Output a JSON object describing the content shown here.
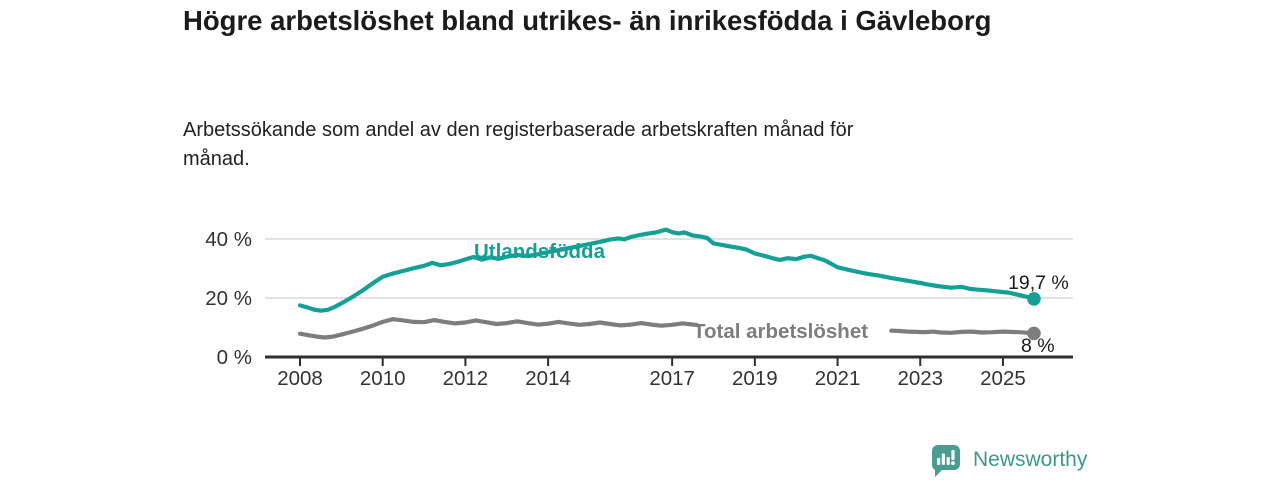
{
  "header": {
    "title": "Högre arbetslöshet bland utrikes- än inrikesfödda i Gävleborg",
    "subtitle": "Arbetssökande som andel av den registerbaserade arbetskraften månad för månad."
  },
  "footer": {
    "brand": "Newsworthy",
    "logo_icon": "bar-chart-speech-bubble-icon"
  },
  "colors": {
    "foreign_series": "#14a096",
    "total_series": "#7d7d7d",
    "axis": "#2e2e2e",
    "tick_text": "#333333",
    "grid": "#d8d8d8",
    "value_text": "#1c1c1c",
    "brand": "#3e978c",
    "logo_bubble": "#4a9b91"
  },
  "chart_data": {
    "type": "line",
    "title": "Högre arbetslöshet bland utrikes- än inrikesfödda i Gävleborg",
    "subtitle": "Arbetssökande som andel av den registerbaserade arbetskraften månad för månad.",
    "unit": "%",
    "xlabel": "",
    "ylabel": "",
    "xlim": [
      2007.15,
      2026.7
    ],
    "ylim": [
      0,
      45
    ],
    "grid": "horizontal",
    "legend_position": "inline-labels",
    "x_ticks": [
      2008,
      2010,
      2012,
      2014,
      2017,
      2019,
      2021,
      2023,
      2025
    ],
    "y_ticks": [
      {
        "value": 0,
        "label": "0 %"
      },
      {
        "value": 20,
        "label": "20 %"
      },
      {
        "value": 40,
        "label": "40 %"
      }
    ],
    "series": [
      {
        "name": "Utlandsfödda",
        "key": "foreign_series",
        "end_label": "19,7 %",
        "end_point": [
          2025.75,
          19.7
        ],
        "segments": [
          [
            [
              2008.0,
              17.5
            ],
            [
              2008.17,
              16.8
            ],
            [
              2008.33,
              16.1
            ],
            [
              2008.5,
              15.7
            ],
            [
              2008.67,
              16.0
            ],
            [
              2008.83,
              16.9
            ],
            [
              2009.0,
              18.2
            ],
            [
              2009.25,
              20.2
            ],
            [
              2009.5,
              22.4
            ],
            [
              2009.75,
              24.9
            ],
            [
              2010.0,
              27.2
            ],
            [
              2010.25,
              28.3
            ],
            [
              2010.5,
              29.2
            ],
            [
              2010.75,
              30.1
            ],
            [
              2011.0,
              30.9
            ],
            [
              2011.2,
              31.9
            ],
            [
              2011.4,
              31.1
            ],
            [
              2011.6,
              31.5
            ],
            [
              2011.8,
              32.2
            ],
            [
              2012.0,
              33.1
            ],
            [
              2012.2,
              33.9
            ],
            [
              2012.4,
              33.0
            ],
            [
              2012.6,
              33.8
            ],
            [
              2012.8,
              33.3
            ],
            [
              2013.0,
              34.0
            ],
            [
              2013.25,
              34.6
            ],
            [
              2013.5,
              34.2
            ],
            [
              2013.75,
              34.8
            ],
            [
              2014.0,
              35.6
            ],
            [
              2014.25,
              36.2
            ],
            [
              2014.5,
              36.9
            ],
            [
              2014.75,
              37.6
            ],
            [
              2015.0,
              38.3
            ],
            [
              2015.25,
              39.0
            ],
            [
              2015.5,
              39.8
            ],
            [
              2015.7,
              40.2
            ],
            [
              2015.85,
              39.9
            ],
            [
              2016.0,
              40.7
            ],
            [
              2016.2,
              41.3
            ],
            [
              2016.4,
              41.8
            ],
            [
              2016.6,
              42.2
            ],
            [
              2016.85,
              43.2
            ],
            [
              2017.0,
              42.3
            ],
            [
              2017.15,
              41.9
            ],
            [
              2017.3,
              42.2
            ],
            [
              2017.5,
              41.2
            ],
            [
              2017.7,
              40.8
            ],
            [
              2017.85,
              40.3
            ],
            [
              2018.0,
              38.5
            ],
            [
              2018.2,
              38.0
            ],
            [
              2018.4,
              37.5
            ],
            [
              2018.6,
              37.0
            ],
            [
              2018.8,
              36.4
            ],
            [
              2019.0,
              35.1
            ],
            [
              2019.2,
              34.4
            ],
            [
              2019.4,
              33.6
            ],
            [
              2019.6,
              32.9
            ],
            [
              2019.8,
              33.5
            ],
            [
              2020.0,
              33.2
            ],
            [
              2020.2,
              34.0
            ],
            [
              2020.35,
              34.3
            ],
            [
              2020.5,
              33.6
            ],
            [
              2020.7,
              32.7
            ],
            [
              2020.85,
              31.6
            ],
            [
              2021.0,
              30.4
            ],
            [
              2021.25,
              29.6
            ],
            [
              2021.5,
              28.8
            ],
            [
              2021.75,
              28.1
            ],
            [
              2022.0,
              27.6
            ],
            [
              2022.25,
              26.9
            ],
            [
              2022.5,
              26.3
            ],
            [
              2022.75,
              25.7
            ],
            [
              2023.0,
              25.1
            ],
            [
              2023.25,
              24.4
            ],
            [
              2023.5,
              23.9
            ],
            [
              2023.75,
              23.5
            ],
            [
              2024.0,
              23.8
            ],
            [
              2024.2,
              23.1
            ],
            [
              2024.4,
              22.8
            ],
            [
              2024.6,
              22.6
            ],
            [
              2024.8,
              22.3
            ],
            [
              2025.0,
              22.0
            ],
            [
              2025.15,
              21.8
            ],
            [
              2025.3,
              21.3
            ],
            [
              2025.45,
              20.8
            ],
            [
              2025.6,
              20.3
            ],
            [
              2025.75,
              19.7
            ]
          ]
        ]
      },
      {
        "name": "Total arbetslöshet",
        "key": "total_series",
        "end_label": "8 %",
        "end_point": [
          2025.75,
          8.0
        ],
        "segments": [
          [
            [
              2008.0,
              7.9
            ],
            [
              2008.2,
              7.4
            ],
            [
              2008.4,
              6.9
            ],
            [
              2008.6,
              6.6
            ],
            [
              2008.8,
              6.9
            ],
            [
              2009.0,
              7.6
            ],
            [
              2009.25,
              8.5
            ],
            [
              2009.5,
              9.5
            ],
            [
              2009.75,
              10.6
            ],
            [
              2010.0,
              11.9
            ],
            [
              2010.25,
              12.8
            ],
            [
              2010.5,
              12.4
            ],
            [
              2010.75,
              11.9
            ],
            [
              2011.0,
              11.8
            ],
            [
              2011.25,
              12.5
            ],
            [
              2011.5,
              11.9
            ],
            [
              2011.75,
              11.4
            ],
            [
              2012.0,
              11.7
            ],
            [
              2012.25,
              12.4
            ],
            [
              2012.5,
              11.8
            ],
            [
              2012.75,
              11.2
            ],
            [
              2013.0,
              11.5
            ],
            [
              2013.25,
              12.1
            ],
            [
              2013.5,
              11.5
            ],
            [
              2013.75,
              11.0
            ],
            [
              2014.0,
              11.3
            ],
            [
              2014.25,
              11.9
            ],
            [
              2014.5,
              11.4
            ],
            [
              2014.75,
              10.9
            ],
            [
              2015.0,
              11.2
            ],
            [
              2015.25,
              11.7
            ],
            [
              2015.5,
              11.2
            ],
            [
              2015.75,
              10.7
            ],
            [
              2016.0,
              11.0
            ],
            [
              2016.25,
              11.5
            ],
            [
              2016.5,
              11.0
            ],
            [
              2016.75,
              10.6
            ],
            [
              2017.0,
              10.9
            ],
            [
              2017.25,
              11.4
            ],
            [
              2017.45,
              11.1
            ],
            [
              2017.6,
              10.8
            ]
          ],
          [
            [
              2022.3,
              8.9
            ],
            [
              2022.5,
              8.8
            ],
            [
              2022.7,
              8.6
            ],
            [
              2022.9,
              8.5
            ],
            [
              2023.1,
              8.4
            ],
            [
              2023.3,
              8.6
            ],
            [
              2023.5,
              8.3
            ],
            [
              2023.75,
              8.2
            ],
            [
              2024.0,
              8.5
            ],
            [
              2024.25,
              8.6
            ],
            [
              2024.5,
              8.3
            ],
            [
              2024.75,
              8.4
            ],
            [
              2025.0,
              8.6
            ],
            [
              2025.2,
              8.5
            ],
            [
              2025.4,
              8.4
            ],
            [
              2025.6,
              8.2
            ],
            [
              2025.75,
              8.0
            ]
          ]
        ]
      }
    ]
  }
}
